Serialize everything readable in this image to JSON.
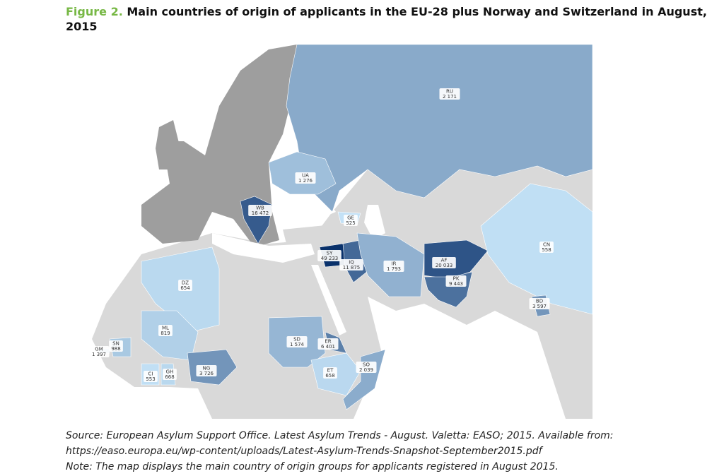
{
  "header": {
    "figure": "Figure 2.",
    "title": "Main countries of origin of applicants in the EU-28 plus Norway and Switzerland in August, 2015"
  },
  "countries": [
    {
      "code": "RU",
      "value": 2171,
      "value_label": "2 171"
    },
    {
      "code": "UA",
      "value": 1276,
      "value_label": "1 276"
    },
    {
      "code": "WB",
      "value": 16472,
      "value_label": "16 472"
    },
    {
      "code": "GE",
      "value": 525,
      "value_label": "525"
    },
    {
      "code": "SY",
      "value": 49233,
      "value_label": "49 233"
    },
    {
      "code": "IQ",
      "value": 11875,
      "value_label": "11 875"
    },
    {
      "code": "IR",
      "value": 1793,
      "value_label": "1 793"
    },
    {
      "code": "AF",
      "value": 20033,
      "value_label": "20 033"
    },
    {
      "code": "PK",
      "value": 9443,
      "value_label": "9 443"
    },
    {
      "code": "CN",
      "value": 558,
      "value_label": "558"
    },
    {
      "code": "BD",
      "value": 3597,
      "value_label": "3 597"
    },
    {
      "code": "DZ",
      "value": 654,
      "value_label": "654"
    },
    {
      "code": "ML",
      "value": 819,
      "value_label": "819"
    },
    {
      "code": "SN",
      "value": 988,
      "value_label": "988"
    },
    {
      "code": "GM",
      "value": 1397,
      "value_label": "1 397"
    },
    {
      "code": "CI",
      "value": 553,
      "value_label": "553"
    },
    {
      "code": "GH",
      "value": 668,
      "value_label": "668"
    },
    {
      "code": "NG",
      "value": 3726,
      "value_label": "3 726"
    },
    {
      "code": "SD",
      "value": 1574,
      "value_label": "1 574"
    },
    {
      "code": "ER",
      "value": 6401,
      "value_label": "6 401"
    },
    {
      "code": "ET",
      "value": 658,
      "value_label": "658"
    },
    {
      "code": "SO",
      "value": 2039,
      "value_label": "2 039"
    }
  ],
  "notes": [
    "Source: European Asylum Support Office. Latest Asylum Trends - August. Valetta: EASO; 2015. Available from:",
    "https://easo.europa.eu/wp-content/uploads/Latest-Asylum-Trends-Snapshot-September2015.pdf",
    "Note: The map displays the main country of origin groups for applicants registered in August 2015."
  ]
}
